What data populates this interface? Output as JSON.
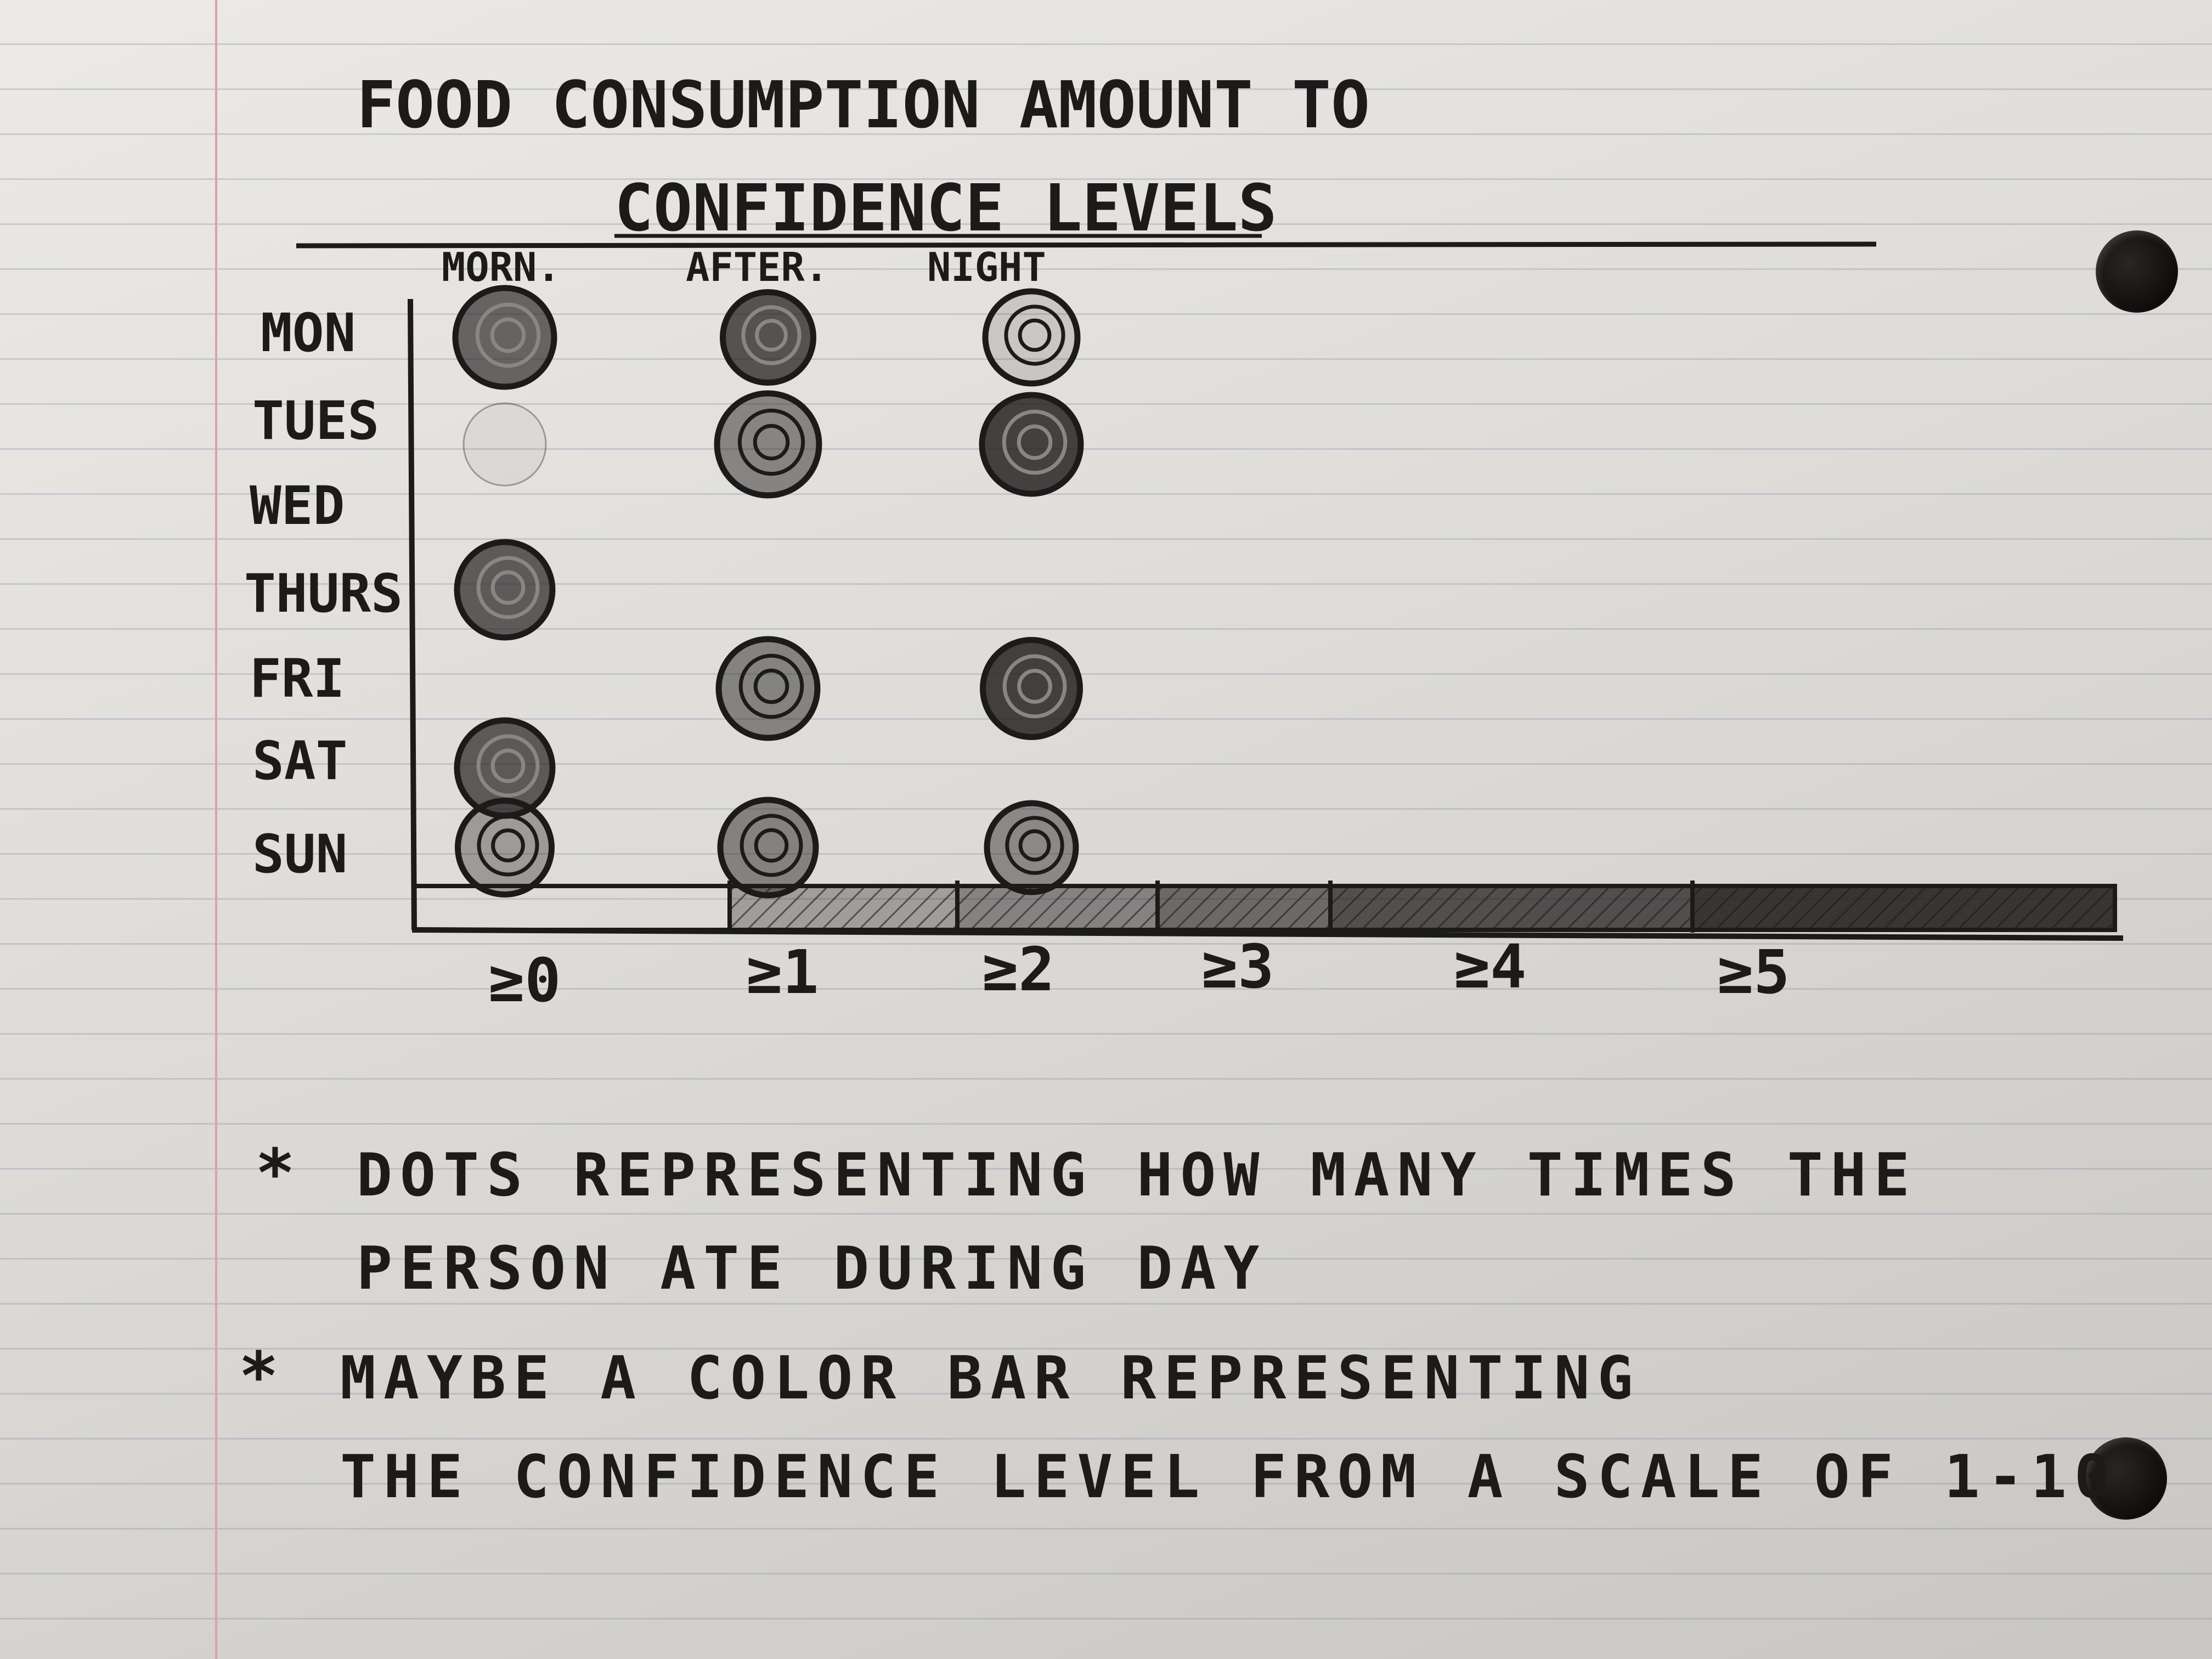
{
  "chart_data": {
    "type": "scatter",
    "title": "FOOD CONSUMPTION AMOUNT TO CONFIDENCE LEVELS",
    "title_lines": [
      "FOOD CONSUMPTION AMOUNT TO",
      "CONFIDENCE LEVELS"
    ],
    "x_categories": [
      "MORN.",
      "AFTER.",
      "NIGHT"
    ],
    "y_categories": [
      "MON",
      "TUES",
      "WED",
      "THURS",
      "FRI",
      "SAT",
      "SUN"
    ],
    "points": [
      {
        "day": "MON",
        "time": "MORN.",
        "size": 1.0,
        "shade": 0.75
      },
      {
        "day": "MON",
        "time": "AFTER.",
        "size": 0.75,
        "shade": 0.85
      },
      {
        "day": "MON",
        "time": "NIGHT",
        "size": 0.8,
        "shade": 0.15
      },
      {
        "day": "TUES",
        "time": "MORN.",
        "size": 0.5,
        "shade": 0.05
      },
      {
        "day": "TUES",
        "time": "AFTER.",
        "size": 1.1,
        "shade": 0.55
      },
      {
        "day": "TUES",
        "time": "NIGHT",
        "size": 1.0,
        "shade": 0.95
      },
      {
        "day": "THURS",
        "time": "MORN.",
        "size": 0.9,
        "shade": 0.8
      },
      {
        "day": "FRI",
        "time": "AFTER.",
        "size": 1.0,
        "shade": 0.55
      },
      {
        "day": "FRI",
        "time": "NIGHT",
        "size": 0.95,
        "shade": 0.95
      },
      {
        "day": "SAT",
        "time": "MORN.",
        "size": 0.9,
        "shade": 0.8
      },
      {
        "day": "SUN",
        "time": "MORN.",
        "size": 0.85,
        "shade": 0.4
      },
      {
        "day": "SUN",
        "time": "AFTER.",
        "size": 0.9,
        "shade": 0.55
      },
      {
        "day": "SUN",
        "time": "NIGHT",
        "size": 0.7,
        "shade": 0.5
      }
    ],
    "colorbar": {
      "tick_labels": [
        "≥0",
        "≥1",
        "≥2",
        "≥3",
        "≥4",
        "≥5"
      ],
      "segment_shades": [
        0.0,
        0.35,
        0.5,
        0.65,
        0.8,
        0.95
      ]
    },
    "grid": false
  },
  "notes": [
    {
      "bullet": "*",
      "lines": [
        "DOTS REPRESENTING HOW MANY TIMES THE",
        "PERSON ATE DURING DAY"
      ]
    },
    {
      "bullet": "*",
      "lines": [
        "MAYBE A COLOR BAR REPRESENTING",
        "THE CONFIDENCE LEVEL FROM A SCALE OF 1-10"
      ]
    }
  ],
  "colors": {
    "ink": "#1d1b1a",
    "paper": "#e6e3e0",
    "margin": "#d9a3a8"
  }
}
